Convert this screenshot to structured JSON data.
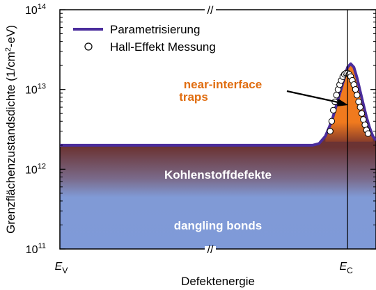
{
  "chart_data": {
    "type": "line",
    "xlabel": "Defektenergie",
    "ylabel_main": "Grenzflächenzustandsdichte (1/cm",
    "ylabel_sup": "2",
    "ylabel_tail": "-eV)",
    "y_scale": "log",
    "ylim": [
      100000000000.0,
      100000000000000.0
    ],
    "y_ticks": [
      {
        "value": 100000000000.0,
        "base": "10",
        "exp": "11"
      },
      {
        "value": 1000000000000.0,
        "base": "10",
        "exp": "12"
      },
      {
        "value": 10000000000000.0,
        "base": "10",
        "exp": "13"
      },
      {
        "value": 100000000000000.0,
        "base": "10",
        "exp": "14"
      }
    ],
    "x_ticks": [
      {
        "pos": 0.0,
        "main": "E",
        "sub": "V"
      },
      {
        "pos": 0.91,
        "main": "E",
        "sub": "C"
      }
    ],
    "axis_break": "//",
    "ec_line_pos": 0.91,
    "series": [
      {
        "name": "Parametrisierung",
        "kind": "line",
        "color": "#4b2d9c",
        "x": [
          0.0,
          0.1,
          0.2,
          0.3,
          0.4,
          0.5,
          0.6,
          0.7,
          0.8,
          0.82,
          0.84,
          0.86,
          0.88,
          0.9,
          0.91,
          0.92,
          0.93,
          0.94,
          0.95,
          0.96,
          0.97,
          0.98,
          0.99,
          1.0
        ],
        "y": [
          2000000000000.0,
          2000000000000.0,
          2000000000000.0,
          2000000000000.0,
          2000000000000.0,
          2000000000000.0,
          2000000000000.0,
          2000000000000.0,
          2000000000000.0,
          2100000000000.0,
          2600000000000.0,
          4000000000000.0,
          7500000000000.0,
          14000000000000.0,
          19000000000000.0,
          21000000000000.0,
          19000000000000.0,
          14000000000000.0,
          9500000000000.0,
          6500000000000.0,
          4500000000000.0,
          3300000000000.0,
          2600000000000.0,
          2300000000000.0
        ]
      },
      {
        "name": "Hall-Effekt Messung",
        "kind": "scatter",
        "marker": "open-circle",
        "x": [
          0.855,
          0.86,
          0.865,
          0.87,
          0.875,
          0.88,
          0.885,
          0.89,
          0.895,
          0.9,
          0.905,
          0.91,
          0.915,
          0.92,
          0.925,
          0.93,
          0.935,
          0.94,
          0.945,
          0.95,
          0.955,
          0.96,
          0.965,
          0.97,
          0.975
        ],
        "y": [
          3000000000000.0,
          4000000000000.0,
          5500000000000.0,
          7000000000000.0,
          8500000000000.0,
          10000000000000.0,
          11500000000000.0,
          13000000000000.0,
          14500000000000.0,
          15500000000000.0,
          16000000000000.0,
          16000000000000.0,
          15500000000000.0,
          14500000000000.0,
          13000000000000.0,
          11500000000000.0,
          10000000000000.0,
          8500000000000.0,
          7000000000000.0,
          6000000000000.0,
          5000000000000.0,
          4200000000000.0,
          3600000000000.0,
          3100000000000.0,
          2800000000000.0
        ]
      }
    ],
    "regions": [
      {
        "label": "near-interface",
        "label2": "traps",
        "color": "#f07a1e"
      },
      {
        "label": "Kohlenstoffdefekte",
        "color": "#6b2e2e"
      },
      {
        "label": "dangling bonds",
        "color": "#7f9ad8"
      }
    ],
    "legend_position": "top-left",
    "grid": false
  }
}
